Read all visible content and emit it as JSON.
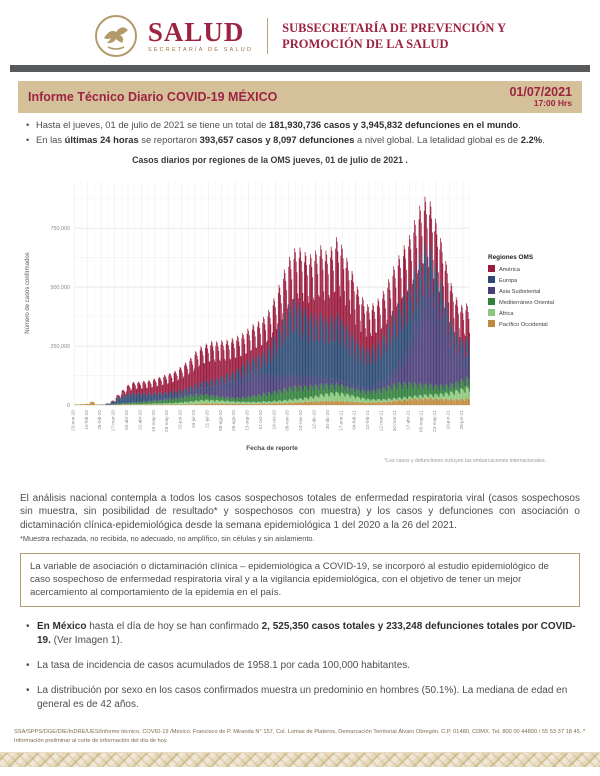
{
  "colors": {
    "accent_maroon": "#9d2342",
    "titlebar_tan": "#d5c199",
    "header_gray_bar": "#58595b",
    "box_border_tan": "#b49a6a"
  },
  "header": {
    "brand": "SALUD",
    "brand_sub": "SECRETARÍA DE SALUD",
    "right_line1": "SUBSECRETARÍA DE PREVENCIÓN Y",
    "right_line2": "PROMOCIÓN DE LA SALUD"
  },
  "title_bar": {
    "title": "Informe Técnico Diario COVID-19 MÉXICO",
    "date": "01/07/2021",
    "time": "17:00 Hrs"
  },
  "top_bullets": [
    [
      {
        "t": "Hasta el jueves, 01 de julio de 2021 se tiene un total de "
      },
      {
        "t": "181,930,736 casos y 3,945,832 defunciones en el mundo",
        "b": true
      },
      {
        "t": "."
      }
    ],
    [
      {
        "t": "En las "
      },
      {
        "t": "últimas 24 horas",
        "b": true
      },
      {
        "t": " se reportaron "
      },
      {
        "t": "393,657 casos y 8,097 defunciones",
        "b": true
      },
      {
        "t": " a nivel global. La letalidad global es de "
      },
      {
        "t": "2.2%",
        "b": true
      },
      {
        "t": "."
      }
    ]
  ],
  "chart_data": {
    "type": "bar",
    "stacked": true,
    "title": "Casos diarios por regiones de la OMS jueves, 01 de julio de 2021 .",
    "ylabel": "Número de casos confirmados",
    "xlabel": "Fecha de reporte",
    "footnote": "*Los casos y defunciones incluyen las embarcaciones internacionales.",
    "legend_title": "Regiones OMS",
    "legend_position": "right",
    "grid": true,
    "ylim": [
      0,
      950000
    ],
    "y_ticks": [
      0,
      250000,
      500000,
      750000
    ],
    "y_tick_labels": [
      "0",
      "250,000",
      "500,000",
      "750,000"
    ],
    "x_start": "2020-01-23",
    "x_end": "2021-07-01",
    "x_step_days_per_point": 7,
    "x_tick_interval_days": 18,
    "x_tick_labels": [
      "23-ene-20",
      "10-feb-20",
      "28-feb-20",
      "17-mar-20",
      "04-abr-20",
      "22-abr-20",
      "10-may-20",
      "28-may-20",
      "15-jun-20",
      "03-jul-20",
      "21-jul-20",
      "08-ago-20",
      "26-ago-20",
      "13-sep-20",
      "01-oct-20",
      "19-oct-20",
      "06-nov-20",
      "24-nov-20",
      "12-dic-20",
      "30-dic-20",
      "17-ene-21",
      "04-feb-21",
      "22-feb-21",
      "12-mar-21",
      "30-mar-21",
      "17-abr-21",
      "05-may-21",
      "23-may-21",
      "10-jun-21",
      "28-jun-21"
    ],
    "values_unit": "miles de casos por día (promedio semanal, aproximado leído del gráfico)",
    "weekday_profile": [
      0.8,
      1.1,
      1.18,
      1.15,
      1.08,
      1.0,
      0.84
    ],
    "stack_order_bottom_to_top": [
      "Pacífico Occidental",
      "África",
      "Mediterráneo Oriental",
      "Asia Sudoriental",
      "Europa",
      "América"
    ],
    "series": [
      {
        "name": "América",
        "color": "#9b1b3e",
        "values": [
          0,
          0,
          0,
          0,
          0,
          0,
          1,
          3,
          10,
          18,
          30,
          38,
          40,
          42,
          45,
          50,
          55,
          60,
          65,
          70,
          80,
          90,
          100,
          115,
          125,
          130,
          135,
          130,
          125,
          120,
          118,
          115,
          110,
          112,
          115,
          118,
          120,
          125,
          135,
          145,
          155,
          165,
          180,
          195,
          200,
          210,
          225,
          240,
          235,
          245,
          270,
          260,
          240,
          220,
          190,
          170,
          155,
          150,
          150,
          150,
          155,
          160,
          165,
          170,
          172,
          172,
          170,
          165,
          160,
          155,
          150,
          140,
          130,
          120,
          115,
          115
        ]
      },
      {
        "name": "Europa",
        "color": "#2c4a74",
        "values": [
          0,
          0,
          0,
          0,
          0,
          1,
          3,
          10,
          22,
          30,
          34,
          34,
          32,
          30,
          28,
          26,
          24,
          22,
          20,
          18,
          17,
          17,
          18,
          19,
          20,
          21,
          23,
          25,
          28,
          30,
          33,
          36,
          40,
          45,
          50,
          60,
          75,
          100,
          135,
          175,
          220,
          255,
          270,
          260,
          240,
          225,
          225,
          230,
          220,
          225,
          235,
          225,
          205,
          185,
          165,
          150,
          140,
          145,
          155,
          170,
          190,
          205,
          210,
          205,
          195,
          180,
          165,
          145,
          125,
          110,
          95,
          80,
          68,
          60,
          55,
          57
        ]
      },
      {
        "name": "Asia Sudoriental",
        "color": "#4b3e78",
        "values": [
          0,
          0,
          0,
          0,
          0,
          0,
          0,
          0,
          0,
          0,
          1,
          1,
          1,
          2,
          2,
          3,
          4,
          5,
          6,
          8,
          10,
          12,
          14,
          18,
          25,
          30,
          35,
          40,
          48,
          55,
          62,
          70,
          78,
          85,
          90,
          85,
          78,
          70,
          62,
          55,
          50,
          46,
          42,
          40,
          38,
          34,
          30,
          26,
          22,
          20,
          18,
          16,
          14,
          13,
          12,
          12,
          13,
          15,
          18,
          25,
          35,
          55,
          80,
          115,
          160,
          230,
          300,
          360,
          370,
          330,
          280,
          220,
          160,
          120,
          95,
          90
        ]
      },
      {
        "name": "Mediterráneo Oriental",
        "color": "#31803c",
        "values": [
          0,
          0,
          0,
          0,
          0,
          0,
          1,
          2,
          3,
          4,
          5,
          6,
          7,
          8,
          9,
          10,
          12,
          14,
          16,
          18,
          20,
          22,
          24,
          24,
          22,
          20,
          18,
          16,
          15,
          14,
          14,
          15,
          17,
          20,
          24,
          27,
          30,
          33,
          36,
          40,
          43,
          46,
          48,
          46,
          44,
          42,
          40,
          38,
          35,
          33,
          32,
          30,
          29,
          28,
          28,
          29,
          31,
          34,
          38,
          43,
          48,
          52,
          55,
          54,
          52,
          48,
          44,
          40,
          37,
          34,
          32,
          31,
          31,
          32,
          34,
          36
        ]
      },
      {
        "name": "África",
        "color": "#8dc87e",
        "values": [
          0,
          0,
          0,
          0,
          0,
          0,
          0,
          0,
          0,
          1,
          1,
          2,
          2,
          3,
          3,
          4,
          4,
          5,
          6,
          7,
          8,
          9,
          11,
          13,
          14,
          14,
          13,
          12,
          11,
          10,
          9,
          8,
          8,
          7,
          7,
          7,
          8,
          8,
          9,
          10,
          11,
          12,
          13,
          14,
          16,
          18,
          21,
          25,
          28,
          30,
          32,
          30,
          27,
          23,
          19,
          16,
          13,
          12,
          11,
          10,
          10,
          10,
          10,
          10,
          10,
          11,
          12,
          13,
          14,
          16,
          19,
          23,
          28,
          33,
          38,
          42
        ]
      },
      {
        "name": "Pacífico Occidental",
        "color": "#c08a3e",
        "values": [
          2,
          3,
          4,
          12,
          2,
          1,
          1,
          1,
          2,
          2,
          2,
          2,
          2,
          2,
          2,
          2,
          2,
          2,
          2,
          2,
          2,
          3,
          3,
          4,
          5,
          6,
          6,
          6,
          6,
          6,
          5,
          5,
          5,
          5,
          5,
          5,
          6,
          6,
          7,
          7,
          8,
          9,
          10,
          11,
          12,
          13,
          14,
          15,
          15,
          16,
          16,
          15,
          14,
          13,
          12,
          11,
          10,
          10,
          11,
          12,
          14,
          16,
          18,
          20,
          22,
          24,
          25,
          26,
          26,
          25,
          24,
          23,
          22,
          22,
          23,
          25
        ]
      }
    ]
  },
  "analysis": {
    "paragraph": "El análisis nacional contempla a todos los casos sospechosos totales de enfermedad respiratoria viral (casos sospechosos sin muestra, sin posibilidad de resultado* y sospechosos con muestra) y los casos y defunciones con asociación o dictaminación clínica-epidemiológica desde la semana epidemiológica 1 del 2020 a la 26 del 2021.",
    "footnote": "*Muestra rechazada, no recibida, no adecuado, no amplífico, sin células y sin aislamiento."
  },
  "note_box": {
    "text": "La variable de asociación o dictaminación clínica – epidemiológica a COVID-19, se incorporó al estudio epidemiológico de caso sospechoso de enfermedad respiratoria viral y a la vigilancia epidemiológica, con el objetivo de tener un mejor acercamiento al comportamiento de la epidemia en el país."
  },
  "mx_bullets": [
    [
      {
        "t": "En México",
        "b": true
      },
      {
        "t": " hasta el día de hoy se han confirmado "
      },
      {
        "t": "2, 525,350 casos totales y 233,248 defunciones totales por COVID-19.",
        "b": true
      },
      {
        "t": " (Ver Imagen 1)."
      }
    ],
    [
      {
        "t": "La tasa de incidencia de casos acumulados de 1958.1 por cada 100,000 habitantes."
      }
    ],
    [
      {
        "t": "La distribución por sexo en los casos confirmados muestra un predominio en hombres (50.1%). La mediana de edad en general es de 42 años."
      }
    ]
  ],
  "footer": {
    "text": "SSA/SPPS/DGE/DIE/InDRE/UES/Informe técnico, COVID-19 /México. Francisco de P. Miranda N° 157, Col. Lomas de Plateros, Demarcación Territorial Álvaro Obregón, C.P. 01480, CDMX. Tel. 800 00 44800 / 55 53 37 18 45. * Información preliminar al corte de información del día de hoy."
  }
}
